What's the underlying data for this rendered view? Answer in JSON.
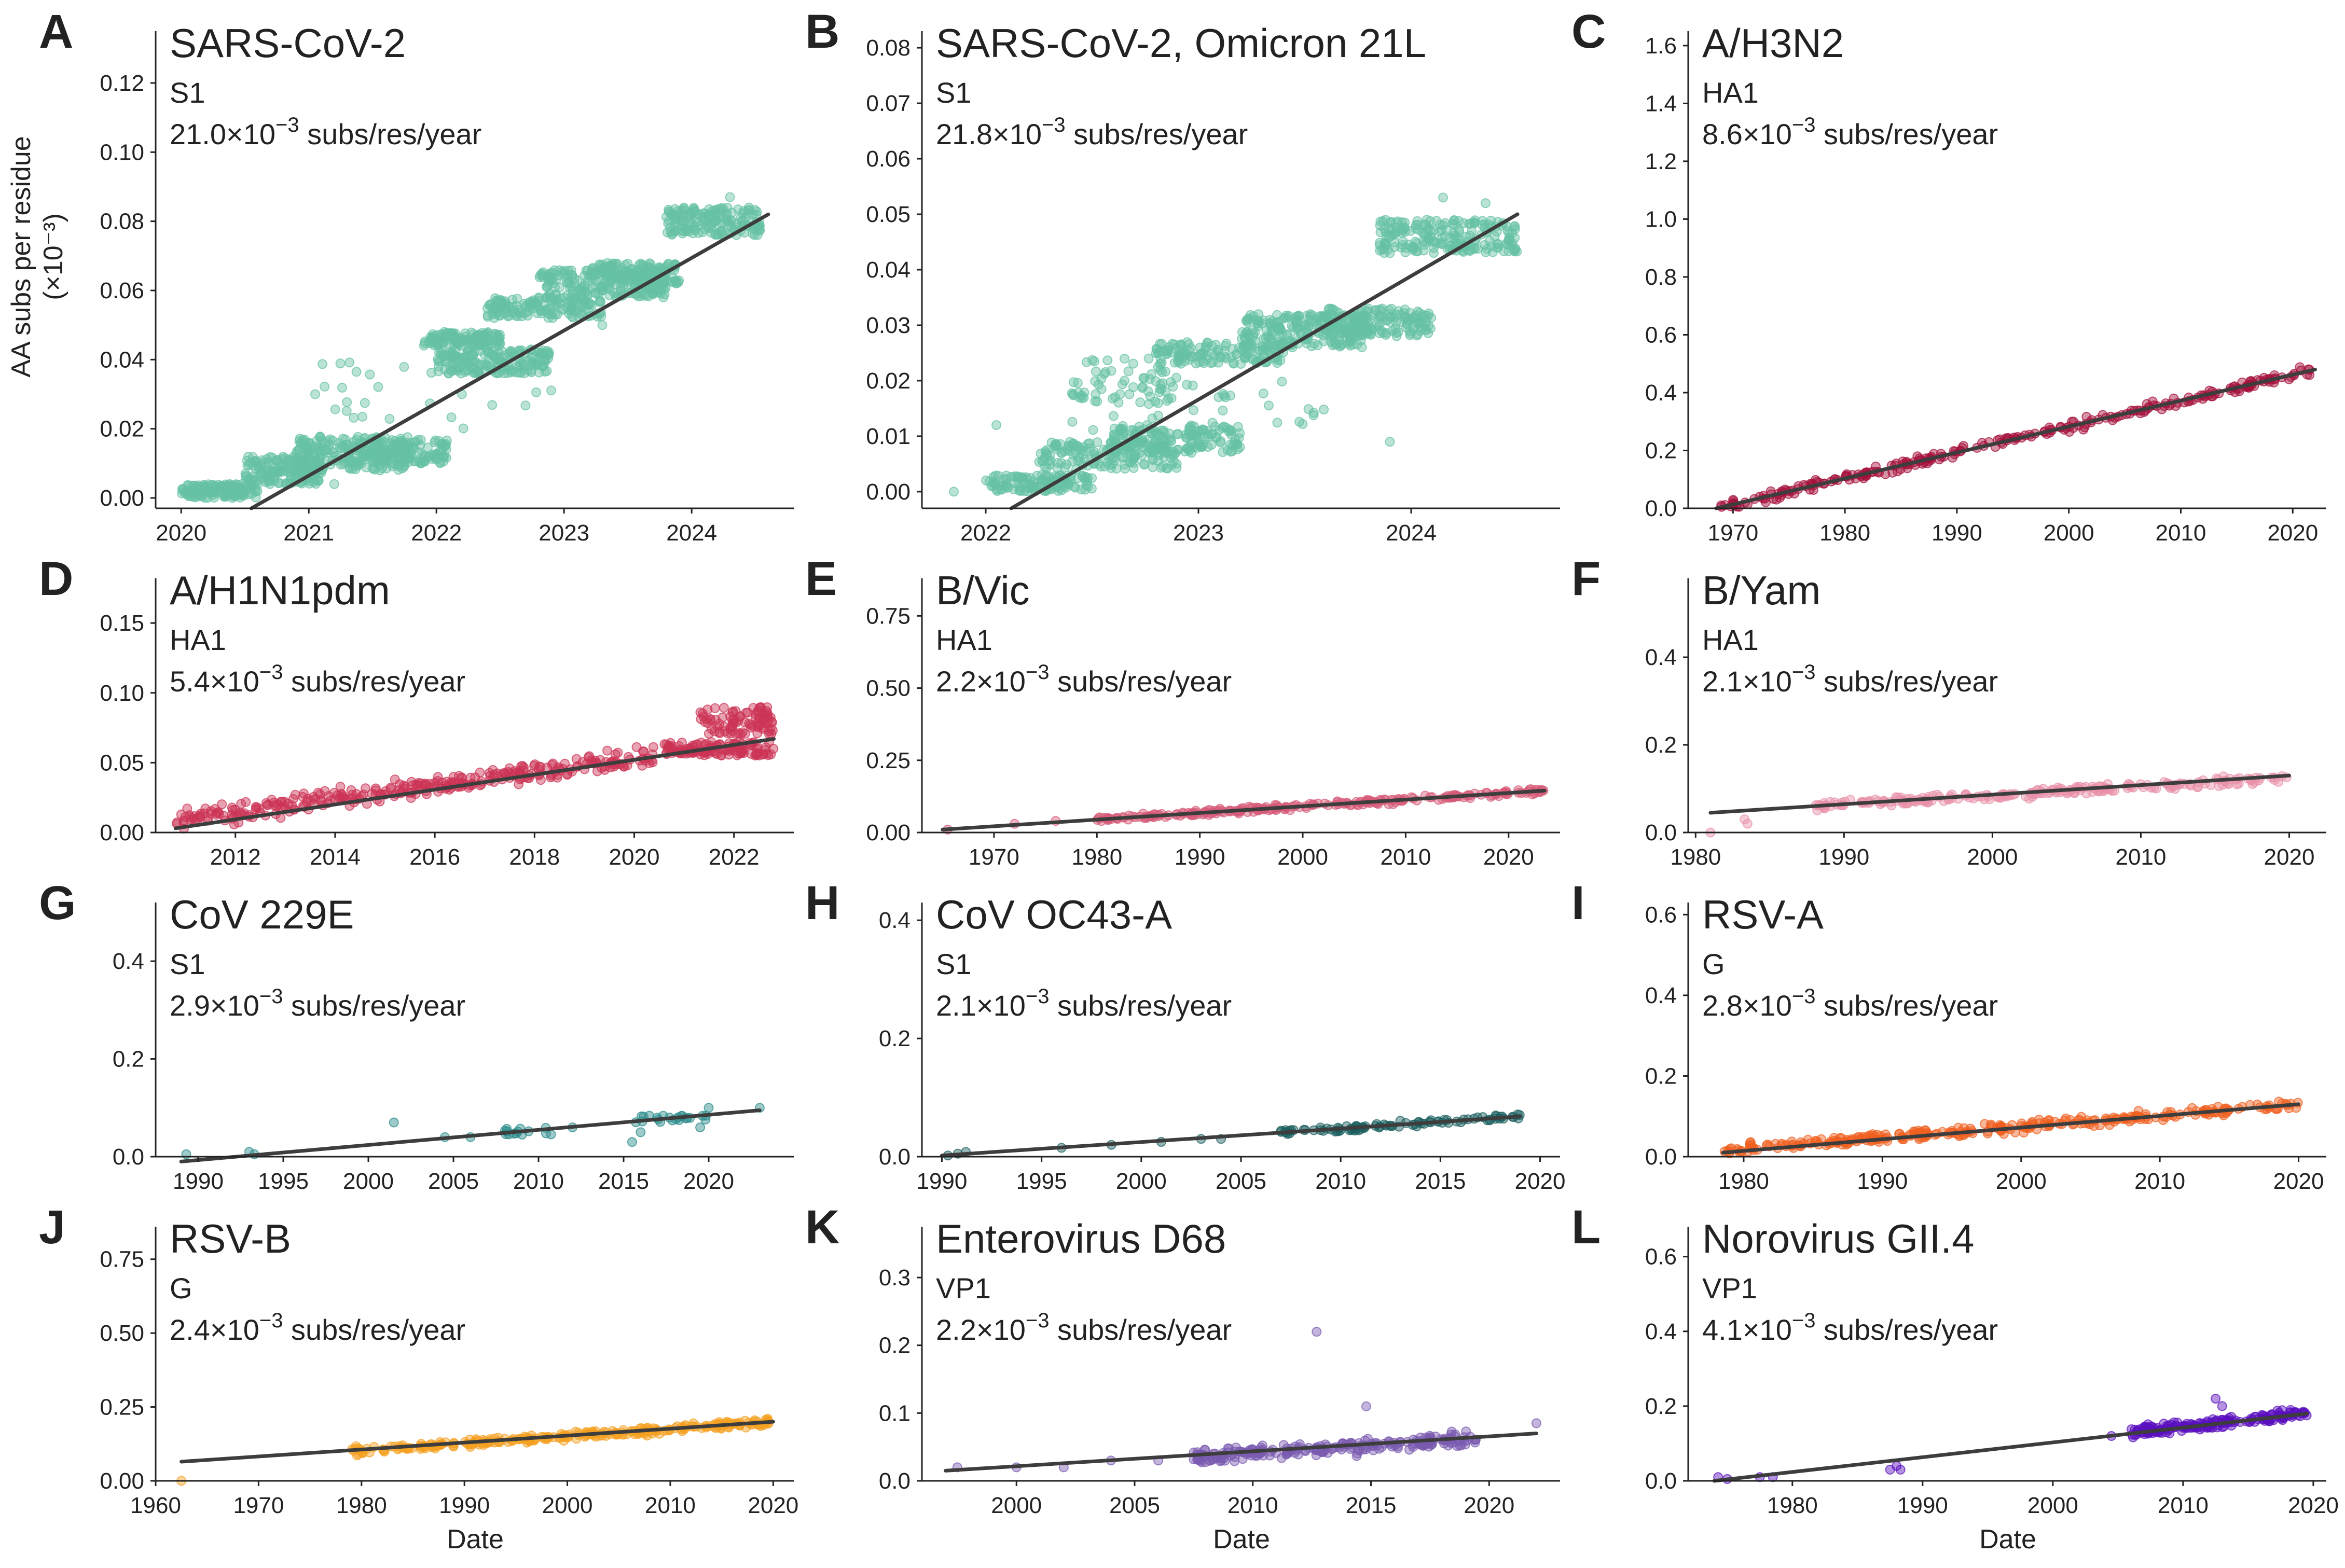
{
  "figure": {
    "ylabel_line1": "AA subs per residue",
    "ylabel_line2": "(×10⁻³)",
    "xlabel": "Date"
  },
  "chart_data": [
    {
      "letter": "A",
      "type": "scatter",
      "title": "SARS-CoV-2",
      "subtitle": "S1",
      "rate_value": "21.0",
      "rate_unit": "subs/res/year",
      "color": "#66c2a5",
      "xlim": [
        2019.8,
        2024.8
      ],
      "ylim": [
        -0.003,
        0.135
      ],
      "xticks": [
        2020,
        2021,
        2022,
        2023,
        2024
      ],
      "yticks": [
        0.0,
        0.02,
        0.04,
        0.06,
        0.08,
        0.1,
        0.12
      ],
      "ytick_labels": [
        "0.00",
        "0.02",
        "0.04",
        "0.06",
        "0.08",
        "0.10",
        "0.12"
      ],
      "xtick_labels": [
        "2020",
        "2021",
        "2022",
        "2023",
        "2024"
      ],
      "trend": [
        [
          2020.55,
          -0.003
        ],
        [
          2024.6,
          0.082
        ]
      ],
      "clusters": [
        [
          2020.0,
          2020.6,
          0.0,
          0.004,
          140
        ],
        [
          2020.5,
          2021.1,
          0.004,
          0.012,
          160
        ],
        [
          2020.9,
          2021.8,
          0.008,
          0.018,
          220
        ],
        [
          2021.5,
          2022.1,
          0.01,
          0.017,
          110
        ],
        [
          2021.9,
          2022.5,
          0.044,
          0.048,
          130
        ],
        [
          2022.0,
          2022.9,
          0.036,
          0.043,
          180
        ],
        [
          2022.4,
          2023.3,
          0.052,
          0.058,
          150
        ],
        [
          2022.8,
          2023.8,
          0.058,
          0.066,
          200
        ],
        [
          2023.2,
          2023.9,
          0.062,
          0.068,
          120
        ],
        [
          2023.8,
          2024.55,
          0.076,
          0.084,
          160
        ],
        [
          2021.0,
          2023.0,
          0.02,
          0.04,
          25
        ]
      ],
      "points": [
        [
          2021.05,
          0.03
        ],
        [
          2021.2,
          0.004
        ],
        [
          2022.2,
          0.03
        ],
        [
          2023.3,
          0.05
        ],
        [
          2024.3,
          0.087
        ]
      ]
    },
    {
      "letter": "B",
      "type": "scatter",
      "title": "SARS-CoV-2, Omicron 21L",
      "subtitle": "S1",
      "rate_value": "21.8",
      "rate_unit": "subs/res/year",
      "color": "#66c2a5",
      "xlim": [
        2021.7,
        2024.7
      ],
      "ylim": [
        -0.003,
        0.083
      ],
      "xticks": [
        2022,
        2023,
        2024
      ],
      "yticks": [
        0.0,
        0.01,
        0.02,
        0.03,
        0.04,
        0.05,
        0.06,
        0.07,
        0.08
      ],
      "ytick_labels": [
        "0.00",
        "0.01",
        "0.02",
        "0.03",
        "0.04",
        "0.05",
        "0.06",
        "0.07",
        "0.08"
      ],
      "xtick_labels": [
        "2022",
        "2023",
        "2024"
      ],
      "trend": [
        [
          2022.12,
          -0.003
        ],
        [
          2024.5,
          0.05
        ]
      ],
      "clusters": [
        [
          2022.0,
          2022.5,
          0.0,
          0.003,
          120
        ],
        [
          2022.25,
          2022.9,
          0.004,
          0.009,
          150
        ],
        [
          2022.6,
          2023.2,
          0.007,
          0.012,
          160
        ],
        [
          2022.4,
          2022.9,
          0.016,
          0.024,
          60
        ],
        [
          2022.8,
          2023.4,
          0.023,
          0.027,
          130
        ],
        [
          2023.2,
          2023.8,
          0.026,
          0.032,
          220
        ],
        [
          2023.6,
          2024.1,
          0.028,
          0.033,
          150
        ],
        [
          2023.85,
          2024.5,
          0.043,
          0.049,
          200
        ],
        [
          2022.4,
          2023.6,
          0.01,
          0.02,
          35
        ]
      ],
      "points": [
        [
          2021.85,
          0.0
        ],
        [
          2022.05,
          0.012
        ],
        [
          2023.9,
          0.009
        ],
        [
          2024.15,
          0.053
        ],
        [
          2024.35,
          0.052
        ]
      ]
    },
    {
      "letter": "C",
      "type": "scatter",
      "title": "A/H3N2",
      "subtitle": "HA1",
      "rate_value": "8.6",
      "rate_unit": "subs/res/year",
      "color": "#a50f3a",
      "xlim": [
        1966,
        2023
      ],
      "ylim": [
        0,
        1.65
      ],
      "xticks": [
        1970,
        1980,
        1990,
        2000,
        2010,
        2020
      ],
      "yticks": [
        0.0,
        0.2,
        0.4,
        0.6,
        0.8,
        1.0,
        1.2,
        1.4,
        1.6
      ],
      "ytick_labels": [
        "0.0",
        "0.2",
        "0.4",
        "0.6",
        "0.8",
        "1.0",
        "1.2",
        "1.4",
        "1.6"
      ],
      "xtick_labels": [
        "1970",
        "1980",
        "1990",
        "2000",
        "2010",
        "2020"
      ],
      "trend": [
        [
          1968.5,
          0.0
        ],
        [
          2022,
          0.48
        ]
      ],
      "band": {
        "x0": 1968.5,
        "x1": 2022,
        "y0": 0.0,
        "y1": 0.48,
        "spread": 0.025,
        "n": 260
      },
      "points": []
    },
    {
      "letter": "D",
      "type": "scatter",
      "title": "A/H1N1pdm",
      "subtitle": "HA1",
      "rate_value": "5.4",
      "rate_unit": "subs/res/year",
      "color": "#cc3355",
      "xlim": [
        2010.4,
        2023.2
      ],
      "ylim": [
        0,
        0.182
      ],
      "xticks": [
        2012,
        2014,
        2016,
        2018,
        2020,
        2022
      ],
      "yticks": [
        0.0,
        0.05,
        0.1,
        0.15
      ],
      "ytick_labels": [
        "0.00",
        "0.05",
        "0.10",
        "0.15"
      ],
      "xtick_labels": [
        "2012",
        "2014",
        "2016",
        "2018",
        "2020",
        "2022"
      ],
      "trend": [
        [
          2010.8,
          0.003
        ],
        [
          2022.8,
          0.067
        ]
      ],
      "band": {
        "x0": 2010.8,
        "x1": 2020.4,
        "y0": 0.008,
        "y1": 0.055,
        "spread": 0.01,
        "n": 320
      },
      "clusters": [
        [
          2020.6,
          2022.8,
          0.055,
          0.065,
          120
        ],
        [
          2021.3,
          2022.8,
          0.07,
          0.09,
          90
        ]
      ],
      "points": [
        [
          2015.2,
          0.038
        ],
        [
          2013.2,
          0.027
        ]
      ]
    },
    {
      "letter": "E",
      "type": "scatter",
      "title": "B/Vic",
      "subtitle": "HA1",
      "rate_value": "2.2",
      "rate_unit": "subs/res/year",
      "color": "#d65a78",
      "xlim": [
        1963,
        2025
      ],
      "ylim": [
        0,
        0.88
      ],
      "xticks": [
        1970,
        1980,
        1990,
        2000,
        2010,
        2020
      ],
      "yticks": [
        0.0,
        0.25,
        0.5,
        0.75
      ],
      "ytick_labels": [
        "0.00",
        "0.25",
        "0.50",
        "0.75"
      ],
      "xtick_labels": [
        "1970",
        "1980",
        "1990",
        "2000",
        "2010",
        "2020"
      ],
      "trend": [
        [
          1965,
          0.01
        ],
        [
          2023.5,
          0.145
        ]
      ],
      "band": {
        "x0": 1980,
        "x1": 2023.5,
        "y0": 0.045,
        "y1": 0.145,
        "spread": 0.015,
        "n": 230
      },
      "points": [
        [
          1965.5,
          0.01
        ],
        [
          1972,
          0.03
        ],
        [
          1976,
          0.04
        ]
      ]
    },
    {
      "letter": "F",
      "type": "scatter",
      "title": "B/Yam",
      "subtitle": "HA1",
      "rate_value": "2.1",
      "rate_unit": "subs/res/year",
      "color": "#e891a8",
      "xlim": [
        1979.5,
        2022.5
      ],
      "ylim": [
        0,
        0.58
      ],
      "xticks": [
        1980,
        1990,
        2000,
        2010,
        2020
      ],
      "yticks": [
        0.0,
        0.2,
        0.4
      ],
      "ytick_labels": [
        "0.0",
        "0.2",
        "0.4"
      ],
      "xtick_labels": [
        "1980",
        "1990",
        "2000",
        "2010",
        "2020"
      ],
      "trend": [
        [
          1981,
          0.045
        ],
        [
          2020,
          0.13
        ]
      ],
      "band": {
        "x0": 1988,
        "x1": 2020,
        "y0": 0.06,
        "y1": 0.125,
        "spread": 0.015,
        "n": 220
      },
      "points": [
        [
          1981,
          0.0
        ],
        [
          1983.5,
          0.02
        ],
        [
          1983.3,
          0.03
        ]
      ]
    },
    {
      "letter": "G",
      "type": "scatter",
      "title": "CoV 229E",
      "subtitle": "S1",
      "rate_value": "2.9",
      "rate_unit": "subs/res/year",
      "color": "#2a8a8a",
      "xlim": [
        1987.5,
        2025
      ],
      "ylim": [
        0,
        0.52
      ],
      "xticks": [
        1990,
        1995,
        2000,
        2005,
        2010,
        2015,
        2020
      ],
      "yticks": [
        0.0,
        0.2,
        0.4
      ],
      "ytick_labels": [
        "0.0",
        "0.2",
        "0.4"
      ],
      "xtick_labels": [
        "1990",
        "1995",
        "2000",
        "2005",
        "2010",
        "2015",
        "2020"
      ],
      "trend": [
        [
          1989,
          -0.01
        ],
        [
          2023,
          0.095
        ]
      ],
      "clusters": [
        [
          2008,
          2011,
          0.045,
          0.06,
          14
        ],
        [
          2015.5,
          2020.5,
          0.07,
          0.085,
          22
        ]
      ],
      "points": [
        [
          1989.3,
          0.005
        ],
        [
          1993,
          0.01
        ],
        [
          1993.3,
          0.005
        ],
        [
          2001.5,
          0.07
        ],
        [
          2004.5,
          0.04
        ],
        [
          2006,
          0.04
        ],
        [
          2012,
          0.06
        ],
        [
          2015.5,
          0.03
        ],
        [
          2016,
          0.05
        ],
        [
          2019.5,
          0.06
        ],
        [
          2023,
          0.1
        ],
        [
          2020,
          0.1
        ]
      ]
    },
    {
      "letter": "H",
      "type": "scatter",
      "title": "CoV OC43-A",
      "subtitle": "S1",
      "rate_value": "2.1",
      "rate_unit": "subs/res/year",
      "color": "#1a5e5e",
      "xlim": [
        1989,
        2021
      ],
      "ylim": [
        0,
        0.43
      ],
      "xticks": [
        1990,
        1995,
        2000,
        2005,
        2010,
        2015,
        2020
      ],
      "yticks": [
        0.0,
        0.2,
        0.4
      ],
      "ytick_labels": [
        "0.0",
        "0.2",
        "0.4"
      ],
      "xtick_labels": [
        "1990",
        "1995",
        "2000",
        "2005",
        "2010",
        "2015",
        "2020"
      ],
      "trend": [
        [
          1990,
          0.002
        ],
        [
          2019,
          0.068
        ]
      ],
      "band": {
        "x0": 2007,
        "x1": 2019,
        "y0": 0.04,
        "y1": 0.068,
        "spread": 0.008,
        "n": 90
      },
      "points": [
        [
          1990.3,
          0.002
        ],
        [
          1990.8,
          0.005
        ],
        [
          1991.2,
          0.008
        ],
        [
          1996,
          0.015
        ],
        [
          1998.5,
          0.02
        ],
        [
          2001,
          0.025
        ],
        [
          2003,
          0.03
        ],
        [
          2004,
          0.03
        ]
      ]
    },
    {
      "letter": "I",
      "type": "scatter",
      "title": "RSV-A",
      "subtitle": "G",
      "rate_value": "2.8",
      "rate_unit": "subs/res/year",
      "color": "#f06020",
      "xlim": [
        1976,
        2022
      ],
      "ylim": [
        0,
        0.63
      ],
      "xticks": [
        1980,
        1990,
        2000,
        2010,
        2020
      ],
      "yticks": [
        0.0,
        0.2,
        0.4,
        0.6
      ],
      "ytick_labels": [
        "0.0",
        "0.2",
        "0.4",
        "0.6"
      ],
      "xtick_labels": [
        "1980",
        "1990",
        "2000",
        "2010",
        "2020"
      ],
      "trend": [
        [
          1978.5,
          0.01
        ],
        [
          2020,
          0.13
        ]
      ],
      "band": {
        "x0": 1978.5,
        "x1": 2020,
        "y0": 0.015,
        "y1": 0.13,
        "spread": 0.018,
        "n": 300
      },
      "points": []
    },
    {
      "letter": "J",
      "type": "scatter",
      "title": "RSV-B",
      "subtitle": "G",
      "rate_value": "2.4",
      "rate_unit": "subs/res/year",
      "color": "#f5a020",
      "xlim": [
        1960,
        2022
      ],
      "ylim": [
        0,
        0.86
      ],
      "xticks": [
        1960,
        1970,
        1980,
        1990,
        2000,
        2010,
        2020
      ],
      "yticks": [
        0.0,
        0.25,
        0.5,
        0.75
      ],
      "ytick_labels": [
        "0.00",
        "0.25",
        "0.50",
        "0.75"
      ],
      "xtick_labels": [
        "1960",
        "1970",
        "1980",
        "1990",
        "2000",
        "2010",
        "2020"
      ],
      "trend": [
        [
          1962.5,
          0.065
        ],
        [
          2020,
          0.2
        ]
      ],
      "band": {
        "x0": 1979,
        "x1": 2020,
        "y0": 0.1,
        "y1": 0.2,
        "spread": 0.018,
        "n": 260
      },
      "points": [
        [
          1962.5,
          0.0
        ]
      ]
    },
    {
      "letter": "K",
      "type": "scatter",
      "title": "Enterovirus D68",
      "subtitle": "VP1",
      "rate_value": "2.2",
      "rate_unit": "subs/res/year",
      "color": "#7a5ab0",
      "xlim": [
        1996,
        2023
      ],
      "ylim": [
        0,
        0.375
      ],
      "xticks": [
        2000,
        2005,
        2010,
        2015,
        2020
      ],
      "yticks": [
        0.0,
        0.1,
        0.2,
        0.3
      ],
      "ytick_labels": [
        "0.0",
        "0.1",
        "0.2",
        "0.3"
      ],
      "xtick_labels": [
        "2000",
        "2005",
        "2010",
        "2015",
        "2020"
      ],
      "trend": [
        [
          1997,
          0.015
        ],
        [
          2022,
          0.07
        ]
      ],
      "band": {
        "x0": 2007.5,
        "x1": 2019.5,
        "y0": 0.035,
        "y1": 0.062,
        "spread": 0.015,
        "n": 230
      },
      "points": [
        [
          1997.5,
          0.02
        ],
        [
          2000,
          0.02
        ],
        [
          2002,
          0.02
        ],
        [
          2004,
          0.03
        ],
        [
          2006,
          0.03
        ],
        [
          2012.7,
          0.22
        ],
        [
          2014.8,
          0.11
        ],
        [
          2022,
          0.085
        ]
      ]
    },
    {
      "letter": "L",
      "type": "scatter",
      "title": "Norovirus GII.4",
      "subtitle": "VP1",
      "rate_value": "4.1",
      "rate_unit": "subs/res/year",
      "color": "#5a0fbf",
      "xlim": [
        1972,
        2021
      ],
      "ylim": [
        0,
        0.68
      ],
      "xticks": [
        1980,
        1990,
        2000,
        2010,
        2020
      ],
      "yticks": [
        0.0,
        0.2,
        0.4,
        0.6
      ],
      "ytick_labels": [
        "0.0",
        "0.2",
        "0.4",
        "0.6"
      ],
      "xtick_labels": [
        "1980",
        "1990",
        "2000",
        "2010",
        "2020"
      ],
      "trend": [
        [
          1974,
          0.0
        ],
        [
          2019.5,
          0.18
        ]
      ],
      "band": {
        "x0": 2006,
        "x1": 2019.5,
        "y0": 0.13,
        "y1": 0.18,
        "spread": 0.02,
        "n": 180
      },
      "points": [
        [
          1974.3,
          0.01
        ],
        [
          1975,
          0.005
        ],
        [
          1977.5,
          0.01
        ],
        [
          1978.5,
          0.01
        ],
        [
          1987.5,
          0.03
        ],
        [
          1988,
          0.04
        ],
        [
          1988.3,
          0.03
        ],
        [
          2004.5,
          0.12
        ],
        [
          2012.5,
          0.22
        ],
        [
          2013,
          0.2
        ]
      ]
    }
  ]
}
